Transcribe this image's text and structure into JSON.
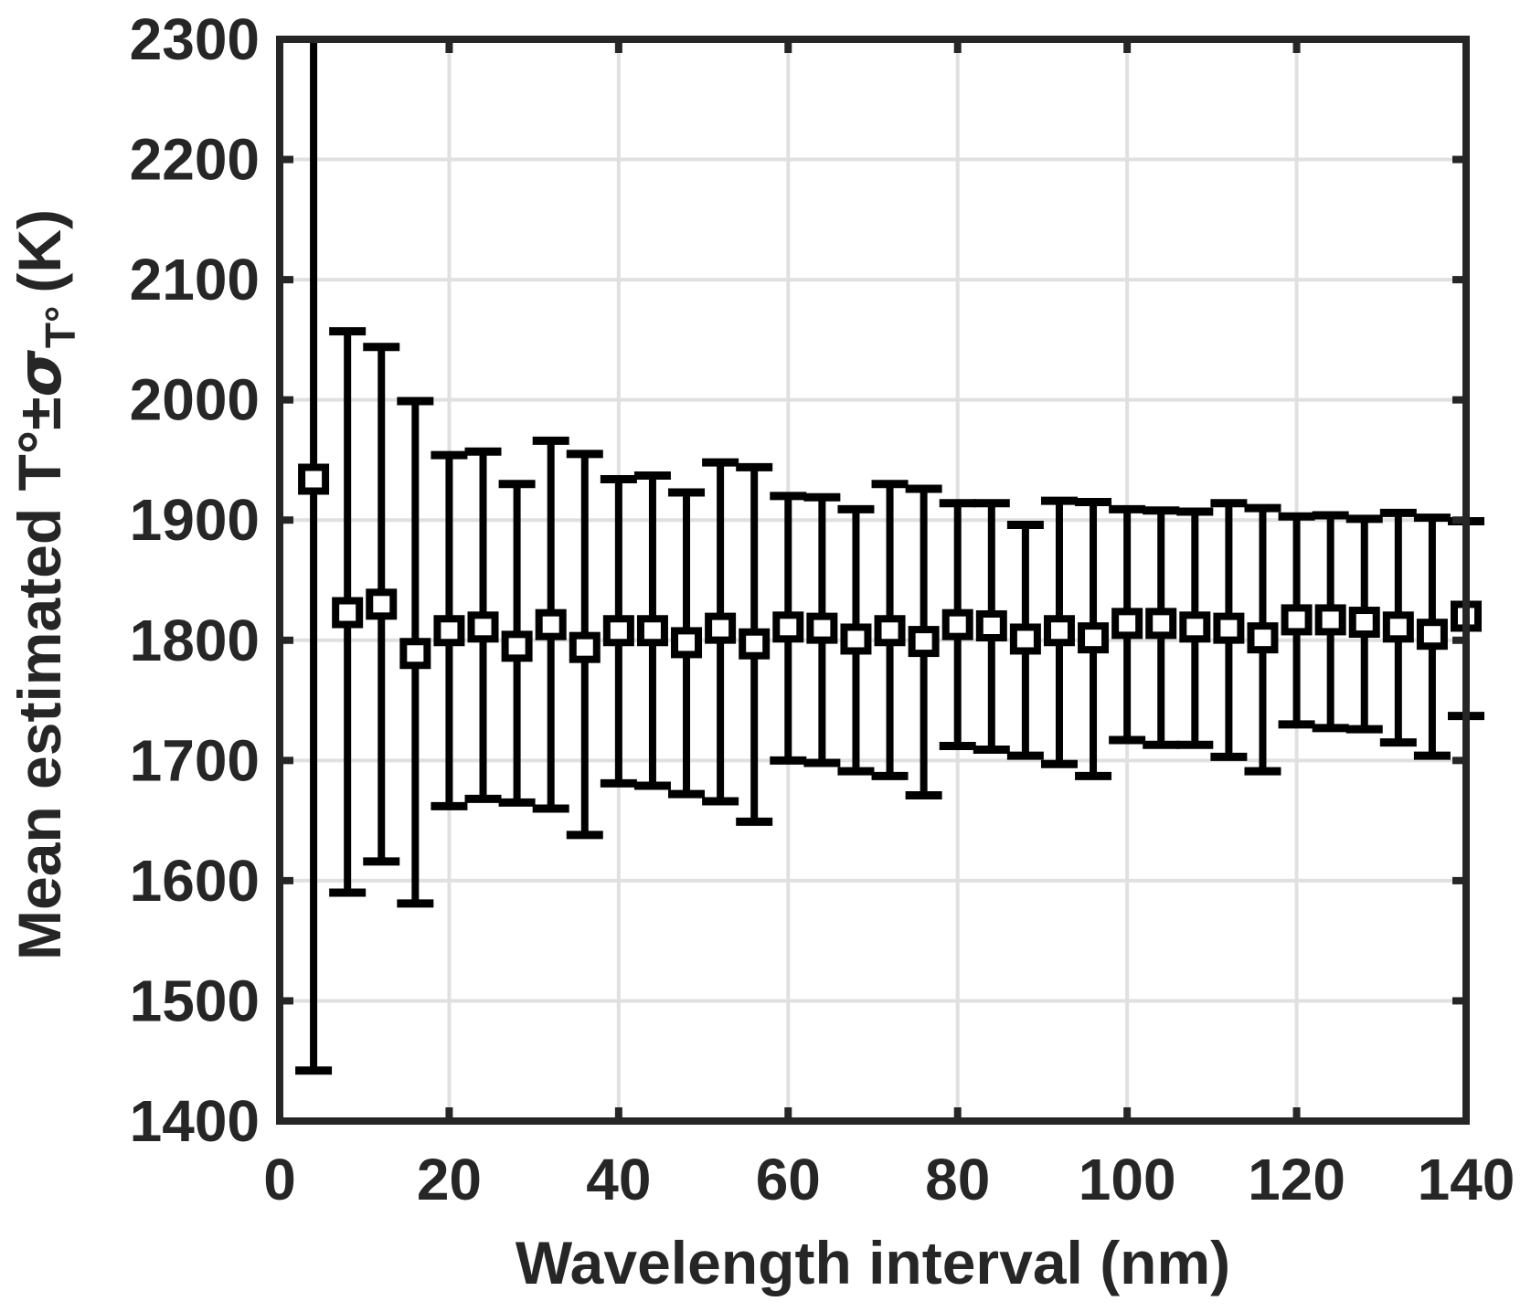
{
  "figure": {
    "background": "#ffffff",
    "axis_color": "#262626",
    "grid_color": "#e0e0e0",
    "data_color": "#000000",
    "marker": "open-square",
    "marker_fill": "#ffffff"
  },
  "chart_data": {
    "type": "scatter",
    "subtype": "errorbar",
    "title": "",
    "xlabel": "Wavelength interval (nm)",
    "ylabel_main": "Mean estimated T°±",
    "ylabel_sigma": "σ",
    "ylabel_sub": "T°",
    "ylabel_unit": "(K)",
    "xlim": [
      0,
      140
    ],
    "ylim": [
      1400,
      2300
    ],
    "x_ticks": [
      0,
      20,
      40,
      60,
      80,
      100,
      120,
      140
    ],
    "y_ticks": [
      1400,
      1500,
      1600,
      1700,
      1800,
      1900,
      2000,
      2100,
      2200,
      2300
    ],
    "grid": true,
    "legend": null,
    "x": [
      4,
      8,
      12,
      16,
      20,
      24,
      28,
      32,
      36,
      40,
      44,
      48,
      52,
      56,
      60,
      64,
      68,
      72,
      76,
      80,
      84,
      88,
      92,
      96,
      100,
      104,
      108,
      112,
      116,
      120,
      124,
      128,
      132,
      136,
      140
    ],
    "mean": [
      1934,
      1823,
      1830,
      1789,
      1808,
      1811,
      1795,
      1813,
      1794,
      1808,
      1808,
      1798,
      1810,
      1797,
      1811,
      1810,
      1801,
      1808,
      1799,
      1813,
      1812,
      1801,
      1808,
      1802,
      1814,
      1814,
      1811,
      1810,
      1802,
      1817,
      1817,
      1815,
      1811,
      1805,
      1820
    ],
    "err_lower_value": [
      1442,
      1590,
      1616,
      1581,
      1662,
      1668,
      1665,
      1660,
      1638,
      1681,
      1679,
      1672,
      1666,
      1649,
      1700,
      1698,
      1691,
      1687,
      1671,
      1712,
      1709,
      1704,
      1697,
      1687,
      1717,
      1713,
      1713,
      1703,
      1691,
      1730,
      1727,
      1726,
      1715,
      1704,
      1737
    ],
    "err_upper_value": [
      null,
      2057,
      2044,
      1999,
      1954,
      1957,
      1930,
      1966,
      1955,
      1934,
      1937,
      1923,
      1948,
      1944,
      1920,
      1919,
      1909,
      1930,
      1926,
      1914,
      1914,
      1896,
      1916,
      1915,
      1909,
      1908,
      1907,
      1914,
      1910,
      1903,
      1904,
      1901,
      1906,
      1902,
      1899
    ],
    "note": "First point (4 nm): upper error bar extends beyond the top of the axis (clipped at 2300 K, no upper cap drawn)."
  }
}
